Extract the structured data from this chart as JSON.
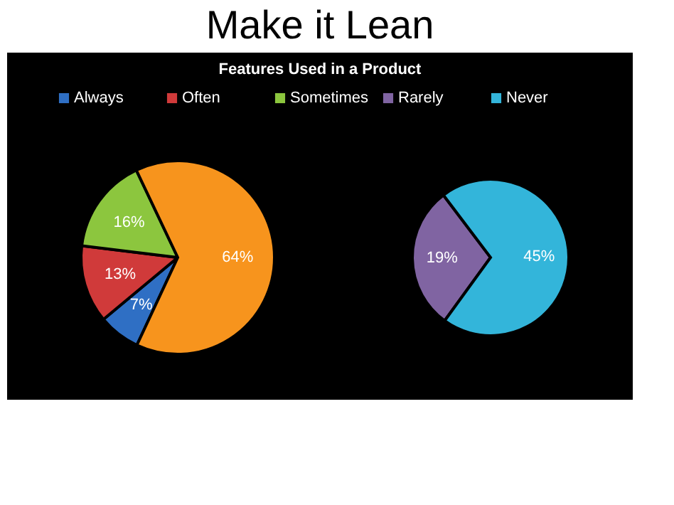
{
  "chart_data": [
    {
      "type": "pie",
      "title": "Make it Lean",
      "subtitle": "Features Used in a Product",
      "legend": "top",
      "categories": [
        "Always",
        "Often",
        "Sometimes",
        null
      ],
      "values": [
        7,
        13,
        16,
        64
      ],
      "colors": [
        "#2f6fc4",
        "#d03a3a",
        "#8cc63e",
        "#f7941d"
      ],
      "value_labels": [
        "7%",
        "13%",
        "16%",
        "64%"
      ]
    },
    {
      "type": "pie",
      "legend": "top",
      "categories": [
        "Rarely",
        "Never"
      ],
      "values": [
        19,
        45
      ],
      "colors": [
        "#8064a2",
        "#33b5da"
      ],
      "value_labels": [
        "19%",
        "45%"
      ]
    }
  ]
}
